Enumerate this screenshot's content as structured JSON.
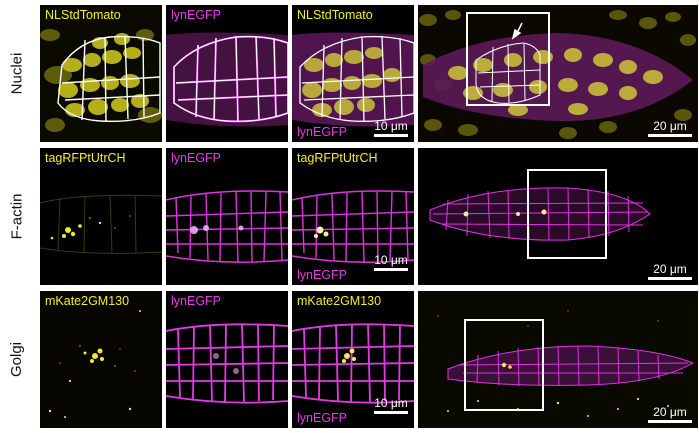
{
  "rows": [
    {
      "label": "Nuclei",
      "panels": [
        {
          "label_top": "NLStdTomato",
          "label_top_color": "yellow"
        },
        {
          "label_top": "lynEGFP",
          "label_top_color": "magenta"
        },
        {
          "label_top": "NLStdTomato",
          "label_top_color": "yellow",
          "label_bottom": "lynEGFP",
          "label_bottom_color": "magenta",
          "scale": "10 μm"
        },
        {
          "scale": "20 μm"
        }
      ]
    },
    {
      "label": "F-actin",
      "panels": [
        {
          "label_top": "tagRFPtUtrCH",
          "label_top_color": "yellow"
        },
        {
          "label_top": "lynEGFP",
          "label_top_color": "magenta"
        },
        {
          "label_top": "tagRFPtUtrCH",
          "label_top_color": "yellow",
          "label_bottom": "lynEGFP",
          "label_bottom_color": "magenta",
          "scale": "10 μm"
        },
        {
          "scale": "20 μm"
        }
      ]
    },
    {
      "label": "Golgi",
      "panels": [
        {
          "label_top": "mKate2GM130",
          "label_top_color": "yellow"
        },
        {
          "label_top": "lynEGFP",
          "label_top_color": "magenta"
        },
        {
          "label_top": "mKate2GM130",
          "label_top_color": "yellow",
          "label_bottom": "lynEGFP",
          "label_bottom_color": "magenta",
          "scale": "10 μm"
        },
        {
          "scale": "20 μm"
        }
      ]
    }
  ],
  "colors": {
    "yellow": "#f4ee2a",
    "magenta": "#ea3bea",
    "outline": "#ffffff",
    "background": "#000000"
  }
}
